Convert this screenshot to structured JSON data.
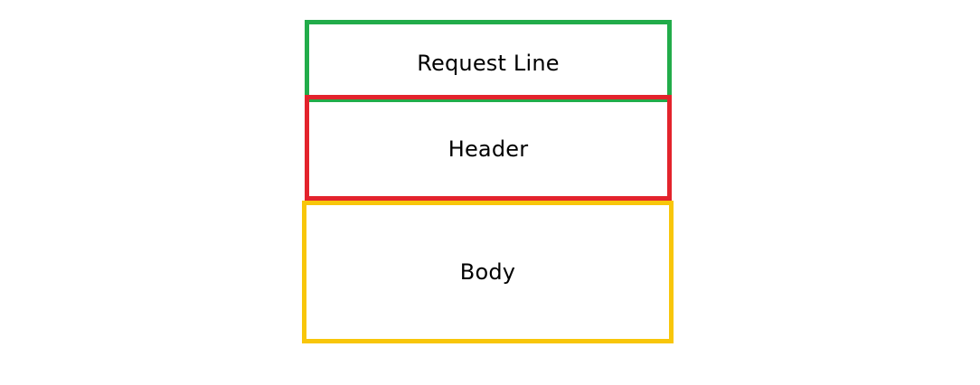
{
  "diagram": {
    "sections": [
      {
        "label": "Request Line",
        "color": "#22ac4a"
      },
      {
        "label": "Header",
        "color": "#e3232c"
      },
      {
        "label": "Body",
        "color": "#f8c60a"
      }
    ]
  }
}
